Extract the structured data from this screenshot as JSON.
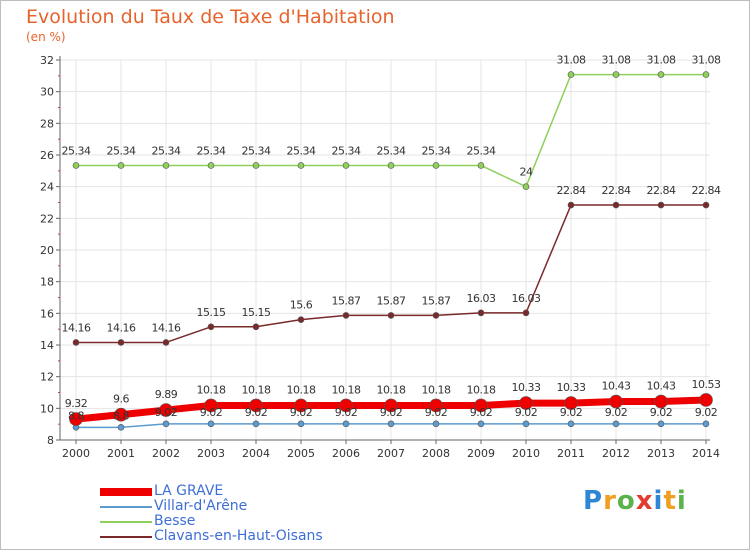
{
  "header": {
    "title": "Evolution du Taux de Taxe d'Habitation",
    "subtitle": "(en %)"
  },
  "chart_data": {
    "type": "line",
    "title": "Evolution du Taux de Taxe d'Habitation",
    "ylabel": "(en %)",
    "xlabel": "",
    "x": [
      2000,
      2001,
      2002,
      2003,
      2004,
      2005,
      2006,
      2007,
      2008,
      2009,
      2010,
      2011,
      2012,
      2013,
      2014
    ],
    "ylim": [
      8,
      32
    ],
    "yticks": [
      8,
      10,
      12,
      14,
      16,
      18,
      20,
      22,
      24,
      26,
      28,
      30,
      32
    ],
    "grid": true,
    "legend_position": "bottom-left",
    "series": [
      {
        "name": "LA GRAVE",
        "color": "#ee0000",
        "values": [
          9.32,
          9.6,
          9.89,
          10.18,
          10.18,
          10.18,
          10.18,
          10.18,
          10.18,
          10.18,
          10.33,
          10.33,
          10.43,
          10.43,
          10.53
        ],
        "labels": [
          "9.32",
          "9.6",
          "9.89",
          "10.18",
          "10.18",
          "10.18",
          "10.18",
          "10.18",
          "10.18",
          "10.18",
          "10.33",
          "10.33",
          "10.43",
          "10.43",
          "10.53"
        ]
      },
      {
        "name": "Villar-d'Arêne",
        "color": "#5b9bd0",
        "values": [
          8.8,
          8.8,
          9.02,
          9.02,
          9.02,
          9.02,
          9.02,
          9.02,
          9.02,
          9.02,
          9.02,
          9.02,
          9.02,
          9.02,
          9.02
        ],
        "labels": [
          "8.8",
          "8.8",
          "9.02",
          "9.02",
          "9.02",
          "9.02",
          "9.02",
          "9.02",
          "9.02",
          "9.02",
          "9.02",
          "9.02",
          "9.02",
          "9.02",
          "9.02"
        ]
      },
      {
        "name": "Besse",
        "color": "#8ed05b",
        "values": [
          25.34,
          25.34,
          25.34,
          25.34,
          25.34,
          25.34,
          25.34,
          25.34,
          25.34,
          25.34,
          24,
          31.08,
          31.08,
          31.08,
          31.08
        ],
        "labels": [
          "25.34",
          "25.34",
          "25.34",
          "25.34",
          "25.34",
          "25.34",
          "25.34",
          "25.34",
          "25.34",
          "25.34",
          "24",
          "31.08",
          "31.08",
          "31.08",
          "31.08"
        ]
      },
      {
        "name": "Clavans-en-Haut-Oisans",
        "color": "#7a2a2a",
        "values": [
          14.16,
          14.16,
          14.16,
          15.15,
          15.15,
          15.6,
          15.87,
          15.87,
          15.87,
          16.03,
          16.03,
          22.84,
          22.84,
          22.84,
          22.84
        ],
        "labels": [
          "14.16",
          "14.16",
          "14.16",
          "15.15",
          "15.15",
          "15.6",
          "15.87",
          "15.87",
          "15.87",
          "16.03",
          "16.03",
          "22.84",
          "22.84",
          "22.84",
          "22.84"
        ]
      }
    ]
  },
  "logo": {
    "p": "P",
    "r": "r",
    "o": "o",
    "x": "x",
    "i1": "i",
    "t": "t",
    "i2": "i"
  }
}
